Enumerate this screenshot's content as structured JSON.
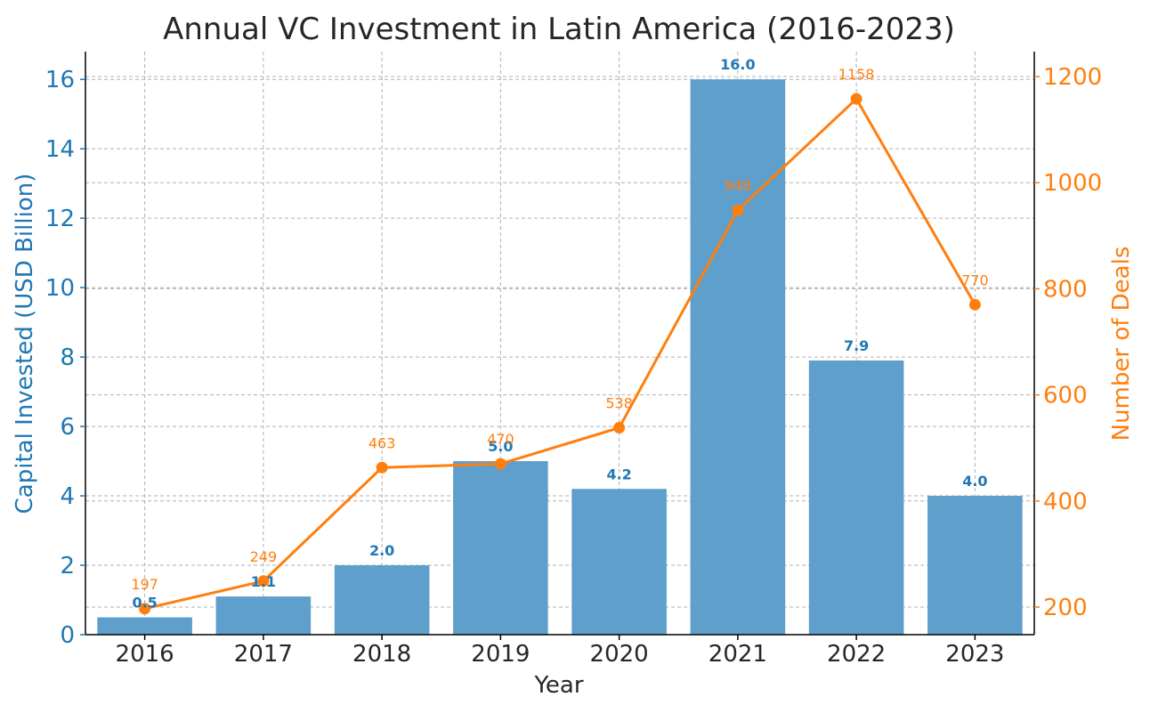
{
  "colors": {
    "bar": "#5f9fcb",
    "left_axis": "#1f77b4",
    "line": "#ff7f0e",
    "text": "#262626"
  },
  "chart_data": {
    "type": "bar",
    "title": "Annual VC Investment in Latin America (2016-2023)",
    "xlabel": "Year",
    "ylabel": "Capital Invested (USD Billion)",
    "y2label": "Number of Deals",
    "categories": [
      "2016",
      "2017",
      "2018",
      "2019",
      "2020",
      "2021",
      "2022",
      "2023"
    ],
    "series": [
      {
        "name": "Capital Invested (USD Billion)",
        "type": "bar",
        "axis": "left",
        "values": [
          0.5,
          1.1,
          2.0,
          5.0,
          4.2,
          16.0,
          7.9,
          4.0
        ],
        "labels": [
          "0.5",
          "1.1",
          "2.0",
          "5.0",
          "4.2",
          "16.0",
          "7.9",
          "4.0"
        ]
      },
      {
        "name": "Number of Deals",
        "type": "line",
        "axis": "right",
        "values": [
          197,
          249,
          463,
          470,
          538,
          948,
          1158,
          770
        ],
        "labels": [
          "197",
          "249",
          "463",
          "470",
          "538",
          "948",
          "1158",
          "770"
        ]
      }
    ],
    "ylim": [
      0,
      16.8
    ],
    "y2lim": [
      148,
      1247
    ],
    "yticks": [
      0,
      2,
      4,
      6,
      8,
      10,
      12,
      14,
      16
    ],
    "ytick_labels": [
      "0",
      "2",
      "4",
      "6",
      "8",
      "10",
      "12",
      "14",
      "16"
    ],
    "y2ticks": [
      200,
      400,
      600,
      800,
      1000,
      1200
    ],
    "y2tick_labels": [
      "200",
      "400",
      "600",
      "800",
      "1000",
      "1200"
    ],
    "grid": true
  }
}
